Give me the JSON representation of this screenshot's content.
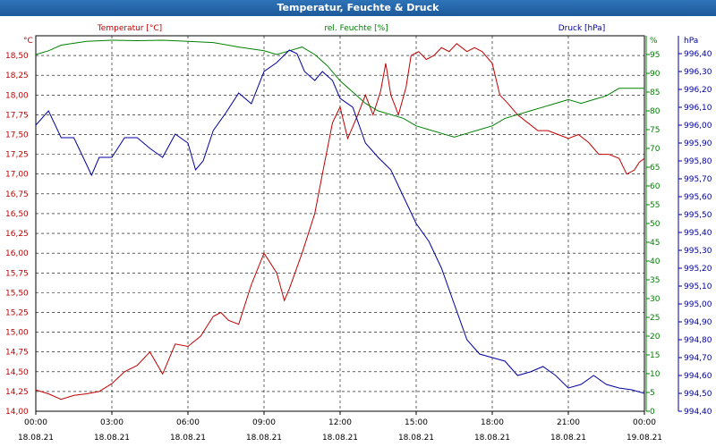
{
  "window": {
    "title": "Temperatur, Feuchte & Druck"
  },
  "chart_data": {
    "type": "line",
    "title": "Temperatur, Feuchte & Druck",
    "grid": true,
    "x": {
      "ticks": [
        {
          "time": "00:00",
          "date": "18.08.21"
        },
        {
          "time": "03:00",
          "date": "18.08.21"
        },
        {
          "time": "06:00",
          "date": "18.08.21"
        },
        {
          "time": "09:00",
          "date": "18.08.21"
        },
        {
          "time": "12:00",
          "date": "18.08.21"
        },
        {
          "time": "15:00",
          "date": "18.08.21"
        },
        {
          "time": "18:00",
          "date": "18.08.21"
        },
        {
          "time": "21:00",
          "date": "18.08.21"
        },
        {
          "time": "00:00",
          "date": "19.08.21"
        }
      ]
    },
    "axes": {
      "temperature": {
        "label": "Temperatur [°C]",
        "unit": "°C",
        "color": "#c00000",
        "range": [
          14.0,
          18.75
        ],
        "ticks": [
          "14,00",
          "14,25",
          "14,50",
          "14,75",
          "15,00",
          "15,25",
          "15,50",
          "15,75",
          "16,00",
          "16,25",
          "16,50",
          "16,75",
          "17,00",
          "17,25",
          "17,50",
          "17,75",
          "18,00",
          "18,25",
          "18,50"
        ]
      },
      "humidity": {
        "label": "rel. Feuchte [%]",
        "unit": "%",
        "color": "#008000",
        "range": [
          0,
          100
        ],
        "ticks": [
          "0",
          "5",
          "10",
          "15",
          "20",
          "25",
          "30",
          "35",
          "40",
          "45",
          "50",
          "55",
          "60",
          "65",
          "70",
          "75",
          "80",
          "85",
          "90",
          "95"
        ]
      },
      "pressure": {
        "label": "Druck [hPa]",
        "unit": "hPa",
        "color": "#0000a0",
        "range": [
          994.4,
          996.5
        ],
        "ticks": [
          "994,40",
          "994,50",
          "994,60",
          "994,70",
          "994,80",
          "994,90",
          "995,00",
          "995,10",
          "995,20",
          "995,30",
          "995,40",
          "995,50",
          "995,60",
          "995,70",
          "995,80",
          "995,90",
          "996,00",
          "996,10",
          "996,20",
          "996,30",
          "996,40"
        ]
      }
    },
    "series": [
      {
        "name": "Temperatur [°C]",
        "axis": "temperature",
        "color": "#c00000",
        "points": [
          [
            0,
            14.27
          ],
          [
            0.5,
            14.22
          ],
          [
            1,
            14.15
          ],
          [
            1.5,
            14.2
          ],
          [
            2,
            14.22
          ],
          [
            2.5,
            14.25
          ],
          [
            3,
            14.35
          ],
          [
            3.5,
            14.5
          ],
          [
            4,
            14.58
          ],
          [
            4.5,
            14.75
          ],
          [
            5,
            14.47
          ],
          [
            5.5,
            14.85
          ],
          [
            6,
            14.82
          ],
          [
            6.5,
            14.95
          ],
          [
            7,
            15.2
          ],
          [
            7.3,
            15.25
          ],
          [
            7.6,
            15.15
          ],
          [
            8,
            15.1
          ],
          [
            8.5,
            15.6
          ],
          [
            9,
            16.0
          ],
          [
            9.5,
            15.75
          ],
          [
            9.8,
            15.4
          ],
          [
            10,
            15.55
          ],
          [
            10.5,
            16.0
          ],
          [
            11,
            16.5
          ],
          [
            11.3,
            17.0
          ],
          [
            11.7,
            17.65
          ],
          [
            12,
            17.85
          ],
          [
            12.3,
            17.45
          ],
          [
            12.7,
            17.75
          ],
          [
            13,
            18.0
          ],
          [
            13.3,
            17.75
          ],
          [
            13.6,
            18.05
          ],
          [
            13.8,
            18.4
          ],
          [
            14,
            18.0
          ],
          [
            14.3,
            17.75
          ],
          [
            14.6,
            18.1
          ],
          [
            14.8,
            18.5
          ],
          [
            15.1,
            18.55
          ],
          [
            15.4,
            18.45
          ],
          [
            15.7,
            18.5
          ],
          [
            16,
            18.6
          ],
          [
            16.3,
            18.55
          ],
          [
            16.6,
            18.65
          ],
          [
            17,
            18.55
          ],
          [
            17.3,
            18.6
          ],
          [
            17.6,
            18.55
          ],
          [
            18,
            18.4
          ],
          [
            18.3,
            18.0
          ],
          [
            18.6,
            17.9
          ],
          [
            19,
            17.75
          ],
          [
            19.4,
            17.65
          ],
          [
            19.8,
            17.55
          ],
          [
            20.2,
            17.55
          ],
          [
            20.6,
            17.5
          ],
          [
            21,
            17.45
          ],
          [
            21.4,
            17.5
          ],
          [
            21.8,
            17.4
          ],
          [
            22.2,
            17.25
          ],
          [
            22.6,
            17.25
          ],
          [
            23,
            17.2
          ],
          [
            23.3,
            17.0
          ],
          [
            23.6,
            17.05
          ],
          [
            23.8,
            17.15
          ],
          [
            24,
            17.2
          ]
        ]
      },
      {
        "name": "rel. Feuchte [%]",
        "axis": "humidity",
        "color": "#008000",
        "points": [
          [
            0,
            95
          ],
          [
            0.5,
            96
          ],
          [
            1,
            97.5
          ],
          [
            1.5,
            98
          ],
          [
            2,
            98.5
          ],
          [
            3,
            98.8
          ],
          [
            4,
            98.7
          ],
          [
            5,
            98.8
          ],
          [
            6,
            98.5
          ],
          [
            7,
            98.2
          ],
          [
            8,
            97
          ],
          [
            9,
            96
          ],
          [
            9.5,
            95
          ],
          [
            10,
            96
          ],
          [
            10.5,
            97
          ],
          [
            11,
            95
          ],
          [
            11.5,
            92
          ],
          [
            12,
            88
          ],
          [
            12.5,
            85
          ],
          [
            13,
            82
          ],
          [
            13.5,
            80
          ],
          [
            14,
            79
          ],
          [
            14.5,
            78
          ],
          [
            15,
            76
          ],
          [
            15.5,
            75
          ],
          [
            16,
            74
          ],
          [
            16.5,
            73
          ],
          [
            17,
            74
          ],
          [
            17.5,
            75
          ],
          [
            18,
            76
          ],
          [
            18.5,
            78
          ],
          [
            19,
            79
          ],
          [
            19.5,
            80
          ],
          [
            20,
            81
          ],
          [
            20.5,
            82
          ],
          [
            21,
            83
          ],
          [
            21.5,
            82
          ],
          [
            22,
            83
          ],
          [
            22.5,
            84
          ],
          [
            23,
            86
          ],
          [
            23.5,
            86
          ],
          [
            24,
            86
          ]
        ]
      },
      {
        "name": "Druck [hPa]",
        "axis": "pressure",
        "color": "#0000a0",
        "points": [
          [
            0,
            996.0
          ],
          [
            0.5,
            996.08
          ],
          [
            1,
            995.93
          ],
          [
            1.5,
            995.93
          ],
          [
            2,
            995.78
          ],
          [
            2.2,
            995.72
          ],
          [
            2.5,
            995.82
          ],
          [
            3,
            995.82
          ],
          [
            3.5,
            995.93
          ],
          [
            4,
            995.93
          ],
          [
            4.5,
            995.87
          ],
          [
            5,
            995.82
          ],
          [
            5.5,
            995.95
          ],
          [
            6,
            995.9
          ],
          [
            6.3,
            995.75
          ],
          [
            6.6,
            995.8
          ],
          [
            7,
            995.97
          ],
          [
            7.5,
            996.07
          ],
          [
            8,
            996.18
          ],
          [
            8.5,
            996.12
          ],
          [
            9,
            996.3
          ],
          [
            9.5,
            996.35
          ],
          [
            10,
            996.42
          ],
          [
            10.3,
            996.4
          ],
          [
            10.6,
            996.3
          ],
          [
            11,
            996.25
          ],
          [
            11.3,
            996.3
          ],
          [
            11.7,
            996.25
          ],
          [
            12,
            996.15
          ],
          [
            12.5,
            996.1
          ],
          [
            13,
            995.9
          ],
          [
            13.5,
            995.82
          ],
          [
            14,
            995.75
          ],
          [
            14.5,
            995.6
          ],
          [
            15,
            995.45
          ],
          [
            15.5,
            995.35
          ],
          [
            16,
            995.2
          ],
          [
            16.5,
            995.0
          ],
          [
            17,
            994.8
          ],
          [
            17.5,
            994.72
          ],
          [
            18,
            994.7
          ],
          [
            18.5,
            994.68
          ],
          [
            19,
            994.6
          ],
          [
            19.5,
            994.62
          ],
          [
            20,
            994.65
          ],
          [
            20.5,
            994.6
          ],
          [
            21,
            994.53
          ],
          [
            21.5,
            994.55
          ],
          [
            22,
            994.6
          ],
          [
            22.5,
            994.55
          ],
          [
            23,
            994.53
          ],
          [
            23.5,
            994.52
          ],
          [
            24,
            994.5
          ]
        ]
      }
    ]
  }
}
